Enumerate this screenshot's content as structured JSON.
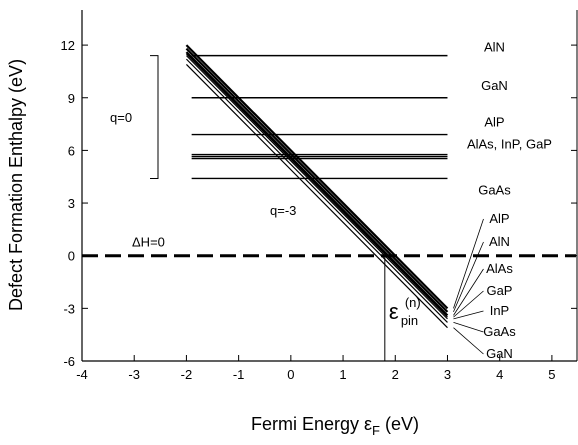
{
  "chart_data": {
    "type": "line",
    "title": "",
    "xlabel": "Fermi Energy ε_F (eV)",
    "ylabel": "Defect Formation Enthalpy (eV)",
    "xlim": [
      -4,
      5.5
    ],
    "ylim": [
      -6,
      14
    ],
    "xticks": [
      -4,
      -3,
      -2,
      -1,
      0,
      1,
      2,
      3,
      4,
      5
    ],
    "yticks": [
      -6,
      -3,
      0,
      3,
      6,
      9,
      12
    ],
    "reference_line": {
      "label": "ΔH=0",
      "y": 0,
      "style": "dashed"
    },
    "q0_levels": [
      {
        "label": "AlN",
        "y": 11.4
      },
      {
        "label": "GaN",
        "y": 9.0
      },
      {
        "label": "AlP",
        "y": 6.9
      },
      {
        "label": "AlAs, InP, GaP",
        "y": 5.65
      },
      {
        "label": "GaAs",
        "y": 4.4
      }
    ],
    "q0_bracket_label": "q=0",
    "qm3_label": "q=-3",
    "pin_label": "ε",
    "pin_sub": "pin",
    "pin_sup": "(n)",
    "pin_x": 1.8,
    "qm3_lines": [
      {
        "label": "AlP",
        "x": [
          -2,
          3
        ],
        "y": [
          12.0,
          -3.0
        ]
      },
      {
        "label": "AlN",
        "x": [
          -2,
          3
        ],
        "y": [
          11.8,
          -3.2
        ]
      },
      {
        "label": "AlAs",
        "x": [
          -2,
          3
        ],
        "y": [
          11.6,
          -3.4
        ]
      },
      {
        "label": "GaP",
        "x": [
          -2,
          3
        ],
        "y": [
          11.5,
          -3.5
        ]
      },
      {
        "label": "InP",
        "x": [
          -2,
          3
        ],
        "y": [
          11.4,
          -3.6
        ]
      },
      {
        "label": "GaAs",
        "x": [
          -2,
          3
        ],
        "y": [
          11.2,
          -3.8
        ]
      },
      {
        "label": "GaN",
        "x": [
          -2,
          3
        ],
        "y": [
          10.9,
          -4.1
        ]
      }
    ]
  }
}
